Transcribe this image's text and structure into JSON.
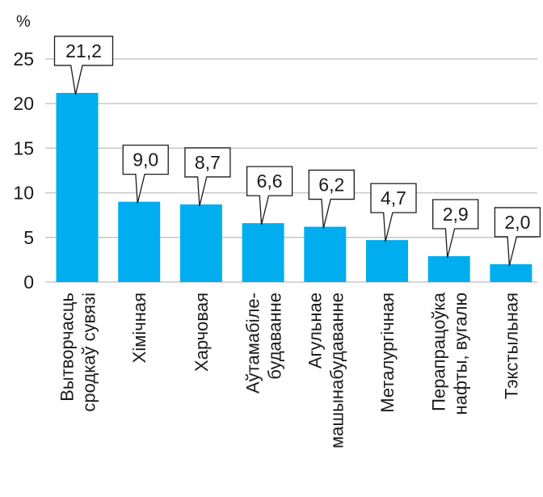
{
  "chart_data": {
    "type": "bar",
    "unit_label": "%",
    "categories": [
      [
        "Вытворчасць",
        "сродкаў сувязі"
      ],
      [
        "Хімічная"
      ],
      [
        "Харчовая"
      ],
      [
        "Аўтамабіле-",
        "будаванне"
      ],
      [
        "Агульнае",
        "машынабудаванне"
      ],
      [
        "Металургічная"
      ],
      [
        "Перапрацоўка",
        "нафты, вугалю"
      ],
      [
        "Тэкстыльная"
      ]
    ],
    "values": [
      21.2,
      9.0,
      8.7,
      6.6,
      6.2,
      4.7,
      2.9,
      2.0
    ],
    "value_labels": [
      "21,2",
      "9,0",
      "8,7",
      "6,6",
      "6,2",
      "4,7",
      "2,9",
      "2,0"
    ],
    "yticks": [
      "0",
      "5",
      "10",
      "15",
      "20",
      "25"
    ],
    "ylim": [
      0,
      25
    ],
    "grid": true,
    "colors": {
      "bar": "#00aeef",
      "grid": "#c8c8c8",
      "text": "#1a1a1a"
    }
  }
}
